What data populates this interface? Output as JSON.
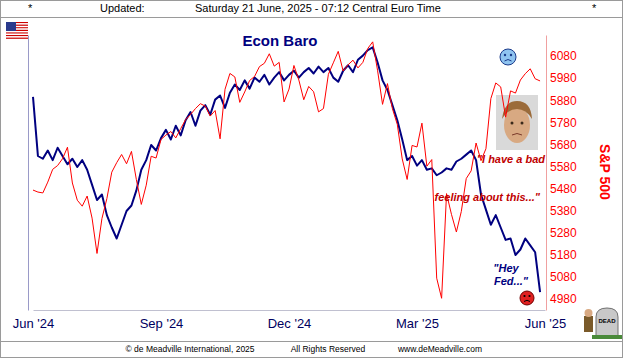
{
  "chart_data": {
    "type": "line",
    "header": [
      "*",
      "Updated:",
      "Saturday 21 June, 2025 - 07:12 Central Euro Time",
      "*"
    ],
    "categories": [
      "Jun '24",
      null,
      null,
      null,
      null,
      null,
      null,
      null,
      null,
      null,
      null,
      null,
      null,
      null,
      null,
      null,
      null,
      null,
      null,
      null,
      null,
      null,
      null,
      null,
      null,
      null,
      "Sep '24",
      null,
      null,
      null,
      null,
      null,
      null,
      null,
      null,
      null,
      null,
      null,
      null,
      null,
      null,
      null,
      null,
      null,
      null,
      null,
      null,
      null,
      null,
      null,
      null,
      null,
      "Dec '24",
      null,
      null,
      null,
      null,
      null,
      null,
      null,
      null,
      null,
      null,
      null,
      null,
      null,
      null,
      null,
      null,
      null,
      null,
      null,
      null,
      null,
      null,
      null,
      null,
      null,
      "Mar '25",
      null,
      null,
      null,
      null,
      null,
      null,
      null,
      null,
      null,
      null,
      null,
      null,
      null,
      null,
      null,
      null,
      null,
      null,
      null,
      null,
      null,
      null,
      null,
      null,
      null,
      "Jun '25"
    ],
    "series": [
      {
        "name": "Econ Baro",
        "color": "#000080",
        "values": [
          77.5,
          56,
          55,
          58,
          54.5,
          59,
          56,
          53,
          55,
          52,
          54.5,
          51,
          45.5,
          40,
          42,
          34.5,
          30,
          26,
          31,
          36,
          38,
          43.5,
          51,
          54.5,
          60,
          58,
          62.5,
          65.5,
          62,
          67,
          63.5,
          69,
          72,
          67,
          72.5,
          74.5,
          71,
          76.5,
          78,
          73.5,
          79,
          82,
          80,
          83.5,
          80.5,
          84.5,
          83,
          85.5,
          82,
          84.5,
          86.5,
          83.5,
          85.5,
          87,
          84.5,
          86.5,
          88,
          86,
          88.5,
          86.5,
          88,
          84.5,
          83,
          87,
          89,
          86.5,
          91,
          92.5,
          94.5,
          95.5,
          90,
          83.5,
          80,
          74.5,
          69,
          62,
          54.5,
          56,
          52.5,
          54.5,
          51,
          51.5,
          49,
          50,
          51.5,
          51,
          54,
          55,
          56.5,
          58,
          54.5,
          42,
          36.5,
          31,
          34.5,
          30,
          25.5,
          26,
          20,
          22,
          26,
          23.5,
          21,
          6.5,
          null
        ]
      },
      {
        "name": "S&P 500",
        "color": "#ff0000",
        "axis": "y2",
        "values": [
          5473,
          5464,
          5460,
          5509,
          5567,
          5584,
          5615,
          5667,
          5505,
          5427,
          5400,
          5446,
          5346,
          5186,
          5344,
          5434,
          5554,
          5597,
          5634,
          5592,
          5648,
          5520,
          5408,
          5495,
          5626,
          5618,
          5702,
          5722,
          5738,
          5709,
          5751,
          5792,
          5815,
          5842,
          5864,
          5853,
          5808,
          5833,
          5705,
          5929,
          6001,
          5985,
          5870,
          5917,
          5969,
          5987,
          6032,
          6047,
          6090,
          6034,
          6051,
          5872,
          5930,
          6037,
          5971,
          5882,
          5942,
          5918,
          5827,
          5842,
          5997,
          6049,
          6101,
          6012,
          6040,
          6061,
          6026,
          6051,
          6114,
          6144,
          6013,
          5861,
          5955,
          5842,
          5770,
          5614,
          5521,
          5675,
          5668,
          5776,
          5581,
          5611,
          5074,
          4983,
          5457,
          5363,
          5283,
          5376,
          5525,
          5560,
          5686,
          5606,
          5660,
          5887,
          5958,
          5940,
          5803,
          5922,
          5912,
          5971,
          6000,
          6022,
          5977,
          5967,
          null
        ]
      }
    ],
    "ylim": [
      0,
      100
    ],
    "yticks": [],
    "y2lim": [
      4930,
      6175
    ],
    "y2ticks": [
      4980,
      5080,
      5180,
      5280,
      5380,
      5480,
      5580,
      5680,
      5780,
      5880,
      5980,
      6080
    ],
    "annotations": [
      "\"I have a bad",
      "feeling about this...\"",
      "\"Hey",
      "Fed...\"",
      "DEAD"
    ],
    "footer": [
      "© de Meadville International, 2025",
      "All Rights Reserved",
      "www.deMeadville.com"
    ]
  }
}
